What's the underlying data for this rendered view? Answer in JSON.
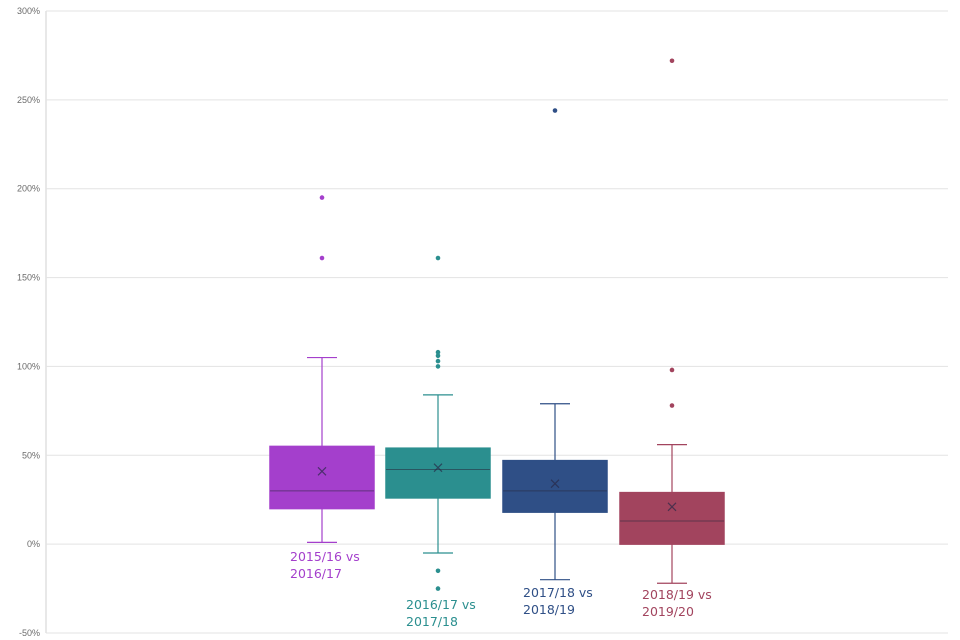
{
  "chart_data": {
    "type": "box",
    "title": "",
    "xlabel": "",
    "ylabel": "",
    "ylim": [
      -50,
      300
    ],
    "ytick_step": 50,
    "yticks": [
      "-50%",
      "0%",
      "50%",
      "100%",
      "150%",
      "200%",
      "250%",
      "300%"
    ],
    "grid": true,
    "series": [
      {
        "name": "2015/16 vs 2016/17",
        "label_lines": [
          "2015/16 vs",
          "2016/17"
        ],
        "color": "#a43fcc",
        "whisker_low": 1,
        "q1": 20,
        "median": 30,
        "q3": 55,
        "whisker_high": 105,
        "mean": 41,
        "outliers": [
          161,
          195
        ]
      },
      {
        "name": "2016/17 vs 2017/18",
        "label_lines": [
          "2016/17 vs",
          "2017/18"
        ],
        "color": "#2b8f8f",
        "whisker_low": -5,
        "q1": 26,
        "median": 42,
        "q3": 54,
        "whisker_high": 84,
        "mean": 43,
        "outliers": [
          -15,
          -25,
          100,
          103,
          106,
          108,
          161
        ]
      },
      {
        "name": "2017/18 vs 2018/19",
        "label_lines": [
          "2017/18 vs",
          "2018/19"
        ],
        "color": "#2f4f86",
        "whisker_low": -20,
        "q1": 18,
        "median": 30,
        "q3": 47,
        "whisker_high": 79,
        "mean": 34,
        "outliers": [
          244
        ]
      },
      {
        "name": "2018/19 vs 2019/20",
        "label_lines": [
          "2018/19 vs",
          "2019/20"
        ],
        "color": "#a2445e",
        "whisker_low": -22,
        "q1": 0,
        "median": 13,
        "q3": 29,
        "whisker_high": 56,
        "mean": 21,
        "outliers": [
          78,
          98,
          272
        ]
      }
    ]
  }
}
